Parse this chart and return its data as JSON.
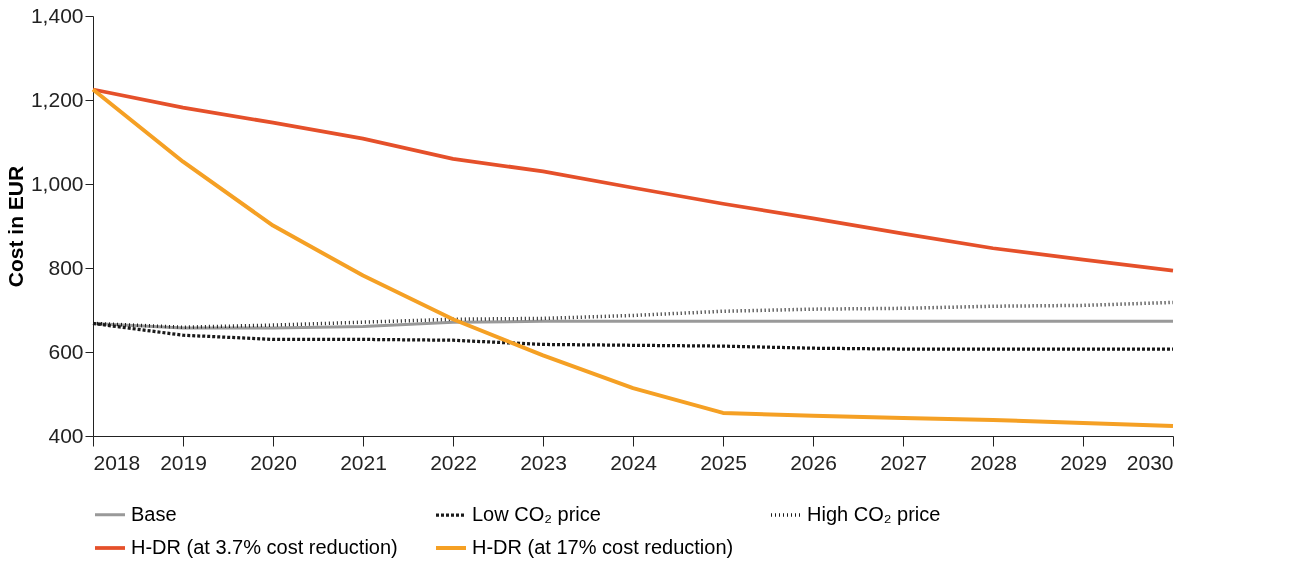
{
  "chart_data": {
    "type": "line",
    "ylabel": "Cost in EUR",
    "x": [
      2018,
      2019,
      2020,
      2021,
      2022,
      2023,
      2024,
      2025,
      2026,
      2027,
      2028,
      2029,
      2030
    ],
    "xlim": [
      2018,
      2030
    ],
    "xticks": [
      2018,
      2019,
      2020,
      2021,
      2022,
      2023,
      2024,
      2025,
      2026,
      2027,
      2028,
      2029,
      2030
    ],
    "ylim": [
      400,
      1400
    ],
    "yticks": [
      400,
      600,
      800,
      {
        "value": 1000,
        "label": "1,000"
      },
      {
        "value": 1200,
        "label": "1,200"
      },
      {
        "value": 1400,
        "label": "1,400"
      }
    ],
    "grid": false,
    "legend": "bottom",
    "marker": "none",
    "series": [
      {
        "name": "Base",
        "color": "#999999",
        "line_style": "solid",
        "values": [
          668,
          657,
          657,
          661,
          671,
          673,
          673,
          673,
          673,
          673,
          673,
          673,
          673
        ]
      },
      {
        "name": "Low CO₂ price",
        "color": "#1a1a1a",
        "line_style": "dashed",
        "values": [
          668,
          640,
          630,
          630,
          628,
          618,
          616,
          614,
          609,
          607,
          607,
          607,
          607
        ]
      },
      {
        "name": "High CO₂ price",
        "color": "#1a1a1a",
        "line_style": "dotted",
        "values": [
          668,
          659,
          664,
          671,
          678,
          680,
          687,
          697,
          702,
          704,
          709,
          711,
          718
        ]
      },
      {
        "name": "H-DR (at 3.7% cost reduction)",
        "color": "#e5502a",
        "line_style": "solid",
        "values": [
          1225,
          1182,
          1146,
          1108,
          1060,
          1030,
          991,
          953,
          918,
          882,
          847,
          820,
          794
        ]
      },
      {
        "name": " H-DR (at 17% cost reduction)",
        "color": "#f5a024",
        "line_style": "solid",
        "values": [
          1225,
          1053,
          901,
          782,
          678,
          592,
          514,
          455,
          448,
          443,
          438,
          431,
          424
        ]
      }
    ]
  }
}
